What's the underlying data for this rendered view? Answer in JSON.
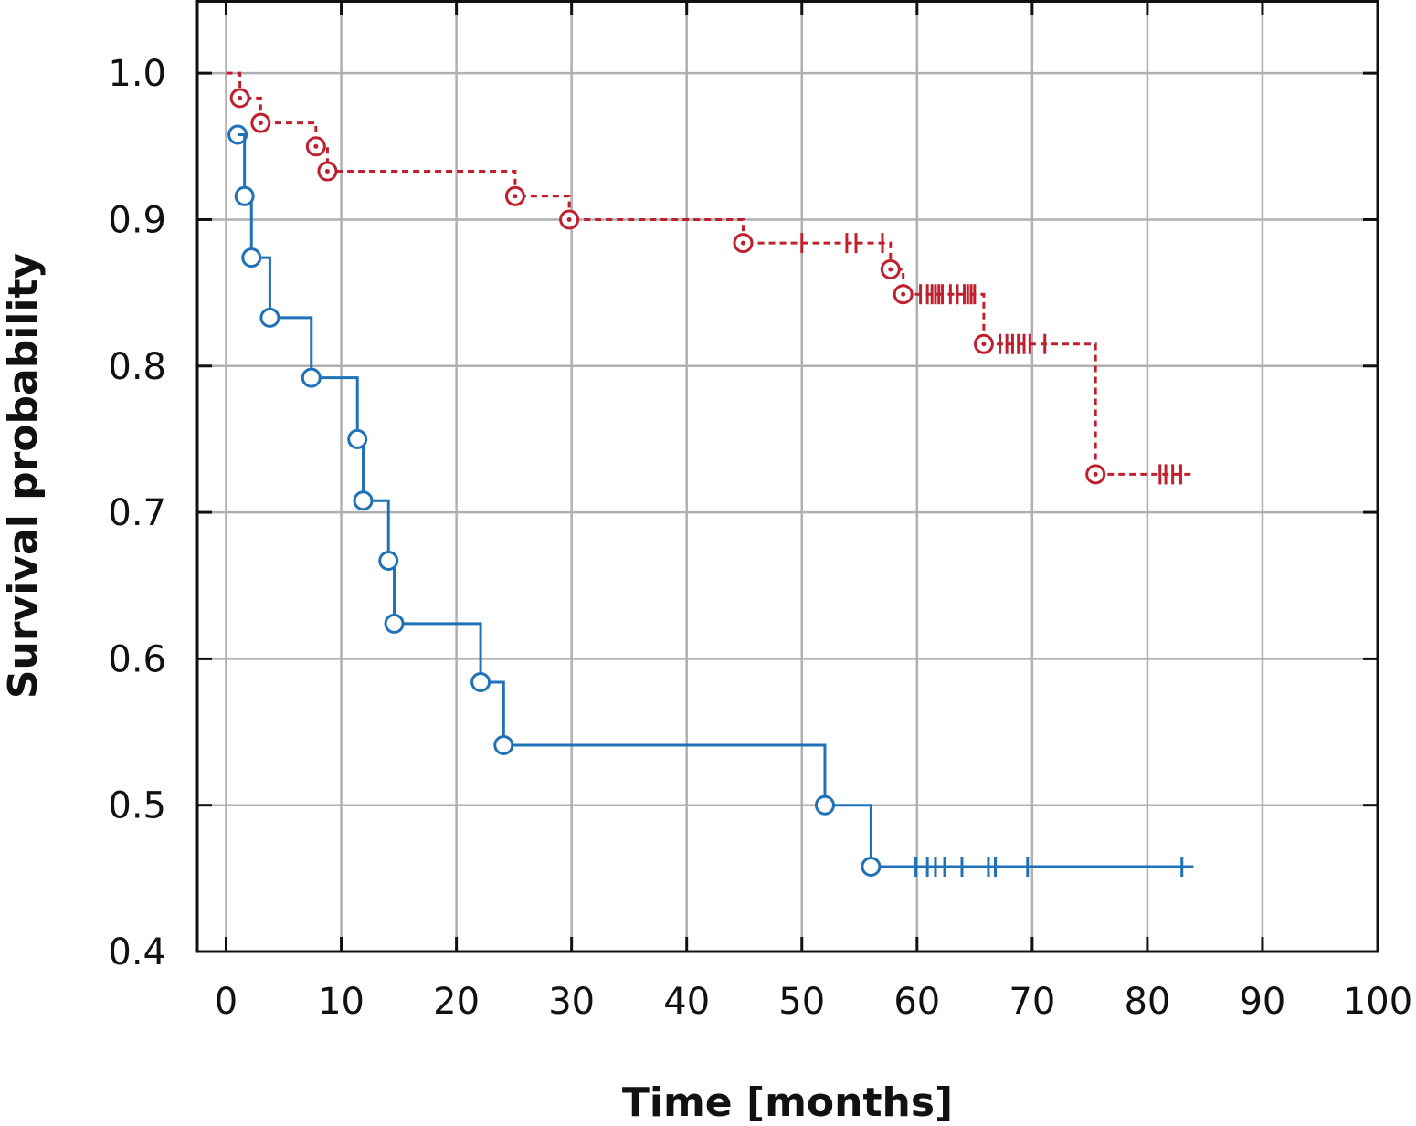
{
  "chart_data": {
    "type": "line",
    "subtype": "kaplan-meier step",
    "title": "",
    "xlabel": "Time [months]",
    "ylabel": "Survival probability",
    "xlim": [
      -2.5,
      100
    ],
    "ylim": [
      0.4,
      1.05
    ],
    "xticks": [
      0,
      10,
      20,
      30,
      40,
      50,
      60,
      70,
      80,
      90,
      100
    ],
    "yticks": [
      0.4,
      0.5,
      0.6,
      0.7,
      0.8,
      0.9,
      1.0
    ],
    "xtick_labels": [
      "0",
      "10",
      "20",
      "30",
      "40",
      "50",
      "60",
      "70",
      "80",
      "90",
      "100"
    ],
    "ytick_labels": [
      "0.4",
      "0.5",
      "0.6",
      "0.7",
      "0.8",
      "0.9",
      "1.0"
    ],
    "grid": true,
    "legend": "none",
    "series": [
      {
        "color": "#c0202e",
        "line_style": "dashed",
        "marker": "circle-dot",
        "start": 1.0,
        "events": [
          {
            "t": 1.2,
            "s": 0.983
          },
          {
            "t": 3.0,
            "s": 0.966
          },
          {
            "t": 7.8,
            "s": 0.95
          },
          {
            "t": 8.8,
            "s": 0.933
          },
          {
            "t": 25.1,
            "s": 0.916
          },
          {
            "t": 29.8,
            "s": 0.9
          },
          {
            "t": 44.9,
            "s": 0.884
          },
          {
            "t": 57.7,
            "s": 0.866
          },
          {
            "t": 58.8,
            "s": 0.849
          },
          {
            "t": 65.8,
            "s": 0.815
          },
          {
            "t": 75.5,
            "s": 0.726
          }
        ],
        "censored": [
          {
            "t": 50.0,
            "s": 0.884
          },
          {
            "t": 53.9,
            "s": 0.884
          },
          {
            "t": 54.7,
            "s": 0.884
          },
          {
            "t": 57.0,
            "s": 0.884
          },
          {
            "t": 60.3,
            "s": 0.849
          },
          {
            "t": 60.9,
            "s": 0.849
          },
          {
            "t": 61.3,
            "s": 0.849
          },
          {
            "t": 61.6,
            "s": 0.849
          },
          {
            "t": 61.9,
            "s": 0.849
          },
          {
            "t": 62.2,
            "s": 0.849
          },
          {
            "t": 62.9,
            "s": 0.849
          },
          {
            "t": 63.5,
            "s": 0.849
          },
          {
            "t": 64.1,
            "s": 0.849
          },
          {
            "t": 64.4,
            "s": 0.849
          },
          {
            "t": 64.7,
            "s": 0.849
          },
          {
            "t": 65.0,
            "s": 0.849
          },
          {
            "t": 67.2,
            "s": 0.815
          },
          {
            "t": 67.8,
            "s": 0.815
          },
          {
            "t": 68.3,
            "s": 0.815
          },
          {
            "t": 68.8,
            "s": 0.815
          },
          {
            "t": 69.3,
            "s": 0.815
          },
          {
            "t": 69.8,
            "s": 0.815
          },
          {
            "t": 71.1,
            "s": 0.815
          },
          {
            "t": 81.1,
            "s": 0.726
          },
          {
            "t": 81.6,
            "s": 0.726
          },
          {
            "t": 82.2,
            "s": 0.726
          },
          {
            "t": 82.9,
            "s": 0.726
          }
        ],
        "end_t": 84.0
      },
      {
        "color": "#1f72b8",
        "line_style": "solid",
        "marker": "circle",
        "start": 0.958,
        "events": [
          {
            "t": 1.6,
            "s": 0.916
          },
          {
            "t": 2.2,
            "s": 0.874
          },
          {
            "t": 3.8,
            "s": 0.833
          },
          {
            "t": 7.4,
            "s": 0.792
          },
          {
            "t": 11.4,
            "s": 0.75
          },
          {
            "t": 11.9,
            "s": 0.708
          },
          {
            "t": 14.1,
            "s": 0.667
          },
          {
            "t": 14.6,
            "s": 0.624
          },
          {
            "t": 22.1,
            "s": 0.584
          },
          {
            "t": 24.1,
            "s": 0.541
          },
          {
            "t": 52.0,
            "s": 0.5
          },
          {
            "t": 56.0,
            "s": 0.458
          }
        ],
        "start_t": 1.0,
        "censored": [
          {
            "t": 59.9,
            "s": 0.458
          },
          {
            "t": 60.9,
            "s": 0.458
          },
          {
            "t": 61.6,
            "s": 0.458
          },
          {
            "t": 62.4,
            "s": 0.458
          },
          {
            "t": 63.9,
            "s": 0.458
          },
          {
            "t": 66.2,
            "s": 0.458
          },
          {
            "t": 66.8,
            "s": 0.458
          },
          {
            "t": 69.6,
            "s": 0.458
          },
          {
            "t": 83.0,
            "s": 0.458
          }
        ],
        "end_t": 84.0
      }
    ]
  }
}
